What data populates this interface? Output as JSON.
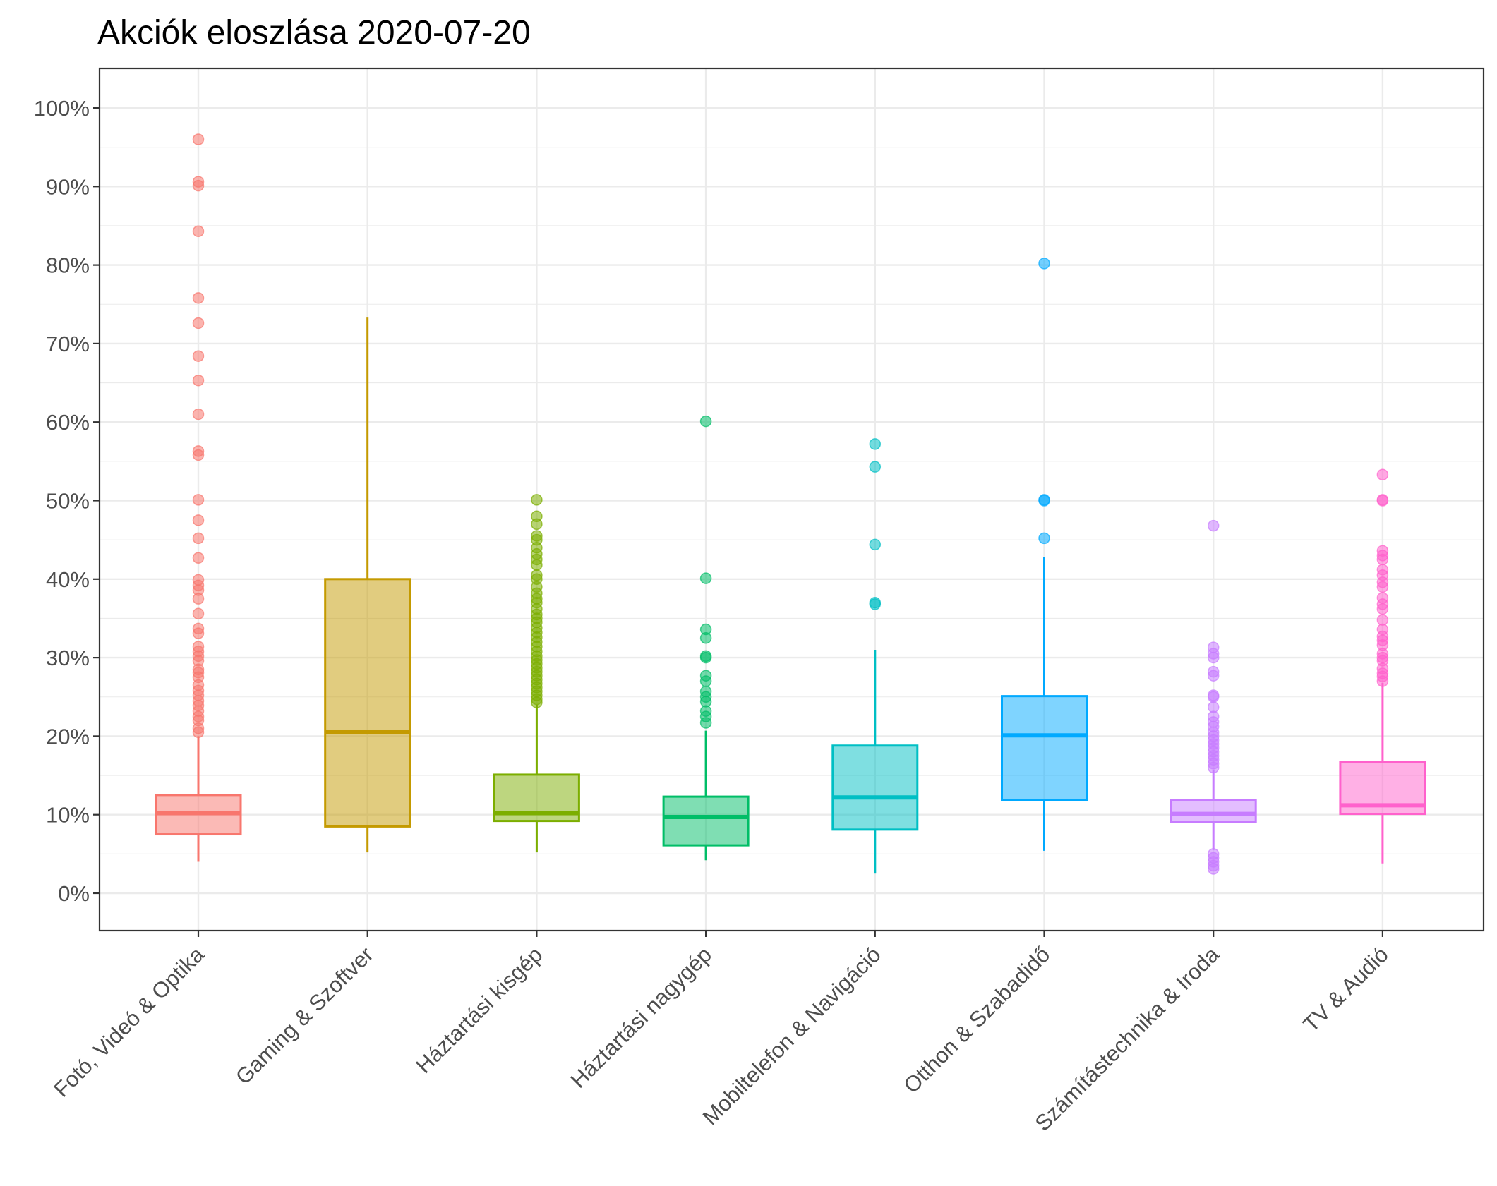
{
  "chart_data": {
    "type": "boxplot",
    "title": "Akciók eloszlása 2020-07-20",
    "xlabel": "",
    "ylabel": "",
    "ylim": [
      -0.045,
      1.05
    ],
    "y_ticks": [
      0,
      0.1,
      0.2,
      0.3,
      0.4,
      0.5,
      0.6,
      0.7,
      0.8,
      0.9,
      1.0
    ],
    "y_tick_labels": [
      "0%",
      "10%",
      "20%",
      "30%",
      "40%",
      "50%",
      "60%",
      "70%",
      "80%",
      "90%",
      "100%"
    ],
    "grid": true,
    "legend": "none",
    "categories": [
      "Fotó, Videó & Optika",
      "Gaming & Szoftver",
      "Háztartási kisgép",
      "Háztartási nagygép",
      "Mobiltelefon & Navigáció",
      "Otthon & Szabadidő",
      "Számítástechnika & Iroda",
      "TV & Audió"
    ],
    "boxes": [
      {
        "category": "Fotó, Videó & Optika",
        "color": "#F8766D",
        "min": 0.04,
        "q1": 0.075,
        "median": 0.102,
        "q3": 0.125,
        "max": 0.2,
        "outliers": [
          0.96,
          0.906,
          0.901,
          0.843,
          0.758,
          0.726,
          0.684,
          0.653,
          0.61,
          0.563,
          0.558,
          0.501,
          0.475,
          0.452,
          0.427,
          0.399,
          0.392,
          0.386,
          0.375,
          0.356,
          0.337,
          0.331,
          0.314,
          0.308,
          0.302,
          0.296,
          0.285,
          0.281,
          0.275,
          0.265,
          0.258,
          0.252,
          0.245,
          0.239,
          0.232,
          0.225,
          0.22,
          0.21,
          0.205
        ]
      },
      {
        "category": "Gaming & Szoftver",
        "color": "#C49A00",
        "min": 0.052,
        "q1": 0.085,
        "median": 0.205,
        "q3": 0.4,
        "max": 0.733,
        "outliers": []
      },
      {
        "category": "Háztartási kisgép",
        "color": "#7CAE00",
        "min": 0.052,
        "q1": 0.092,
        "median": 0.102,
        "q3": 0.151,
        "max": 0.24,
        "outliers": [
          0.501,
          0.48,
          0.47,
          0.455,
          0.45,
          0.44,
          0.432,
          0.425,
          0.418,
          0.405,
          0.4,
          0.39,
          0.382,
          0.375,
          0.37,
          0.362,
          0.355,
          0.35,
          0.345,
          0.338,
          0.332,
          0.326,
          0.32,
          0.314,
          0.308,
          0.302,
          0.297,
          0.292,
          0.287,
          0.282,
          0.277,
          0.272,
          0.267,
          0.262,
          0.257,
          0.252,
          0.247,
          0.243
        ]
      },
      {
        "category": "Háztartási nagygép",
        "color": "#00BE67",
        "min": 0.042,
        "q1": 0.061,
        "median": 0.097,
        "q3": 0.123,
        "max": 0.207,
        "outliers": [
          0.601,
          0.401,
          0.336,
          0.325,
          0.302,
          0.3,
          0.277,
          0.27,
          0.257,
          0.25,
          0.244,
          0.232,
          0.225,
          0.217
        ]
      },
      {
        "category": "Mobiltelefon & Navigáció",
        "color": "#00BFC4",
        "min": 0.025,
        "q1": 0.081,
        "median": 0.122,
        "q3": 0.188,
        "max": 0.31,
        "outliers": [
          0.572,
          0.543,
          0.444,
          0.37,
          0.368
        ]
      },
      {
        "category": "Otthon & Szabadidő",
        "color": "#00A9FF",
        "min": 0.054,
        "q1": 0.119,
        "median": 0.201,
        "q3": 0.251,
        "max": 0.428,
        "outliers": [
          0.802,
          0.501,
          0.5,
          0.452
        ]
      },
      {
        "category": "Számítástechnika & Iroda",
        "color": "#C77CFF",
        "min": 0.055,
        "q1": 0.091,
        "median": 0.101,
        "q3": 0.119,
        "max": 0.157,
        "outliers": [
          0.468,
          0.313,
          0.305,
          0.3,
          0.282,
          0.277,
          0.252,
          0.25,
          0.237,
          0.225,
          0.218,
          0.212,
          0.205,
          0.2,
          0.195,
          0.19,
          0.185,
          0.18,
          0.175,
          0.17,
          0.165,
          0.16,
          0.05,
          0.045,
          0.04,
          0.035,
          0.031
        ]
      },
      {
        "category": "TV & Audió",
        "color": "#FF61CC",
        "min": 0.038,
        "q1": 0.101,
        "median": 0.112,
        "q3": 0.167,
        "max": 0.268,
        "outliers": [
          0.533,
          0.501,
          0.5,
          0.436,
          0.43,
          0.425,
          0.412,
          0.405,
          0.396,
          0.39,
          0.376,
          0.368,
          0.362,
          0.348,
          0.336,
          0.327,
          0.322,
          0.316,
          0.305,
          0.3,
          0.296,
          0.286,
          0.28,
          0.276,
          0.27
        ]
      }
    ]
  }
}
